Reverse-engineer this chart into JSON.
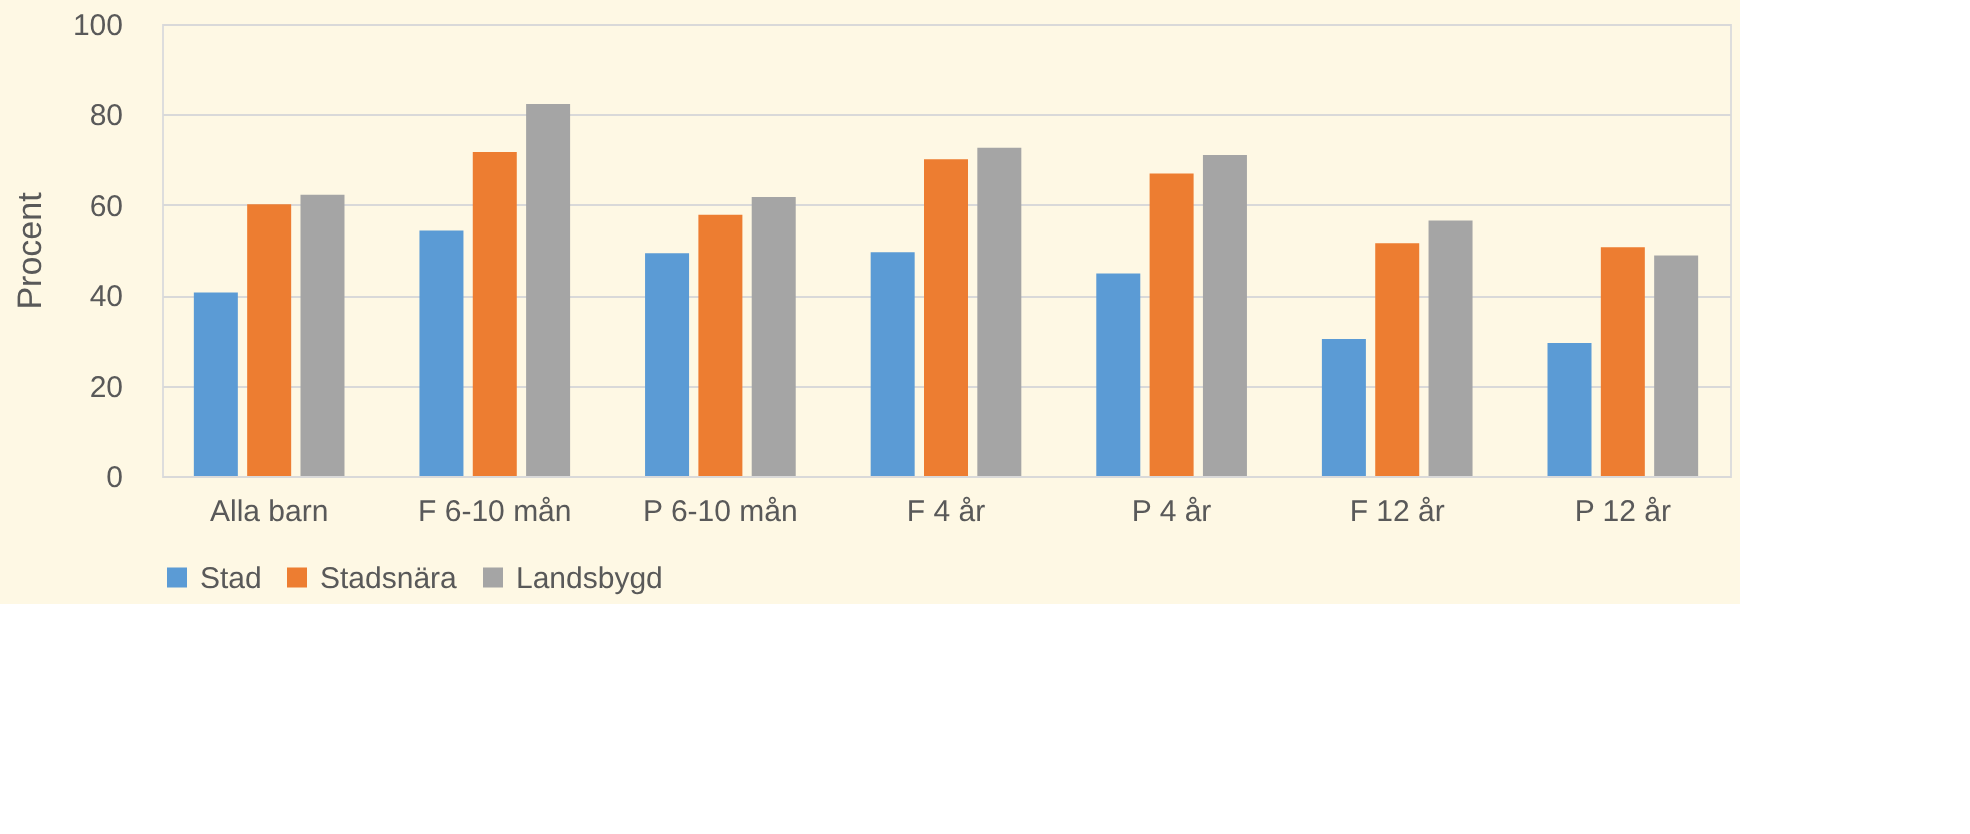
{
  "chart_data": {
    "type": "bar",
    "ylabel": "Procent",
    "categories": [
      "Alla barn",
      "F 6-10 mån",
      "P 6-10 mån",
      "F 4 år",
      "P 4 år",
      "F 12 år",
      "P 12 år"
    ],
    "series": [
      {
        "name": "Stad",
        "color": "#5b9bd5",
        "values": [
          40.6,
          54.3,
          49.3,
          49.5,
          44.8,
          30.3,
          29.4
        ]
      },
      {
        "name": "Stadsnära",
        "color": "#ed7d31",
        "values": [
          60.1,
          71.7,
          57.8,
          70.1,
          66.9,
          51.5,
          50.6
        ]
      },
      {
        "name": "Landsbygd",
        "color": "#a5a5a5",
        "values": [
          62.2,
          82.3,
          61.7,
          72.6,
          71.0,
          56.5,
          48.8
        ]
      }
    ],
    "ylim": [
      0,
      100
    ],
    "yticks": [
      0,
      20,
      40,
      60,
      80,
      100
    ],
    "grid": "y",
    "legend": "bottom"
  }
}
